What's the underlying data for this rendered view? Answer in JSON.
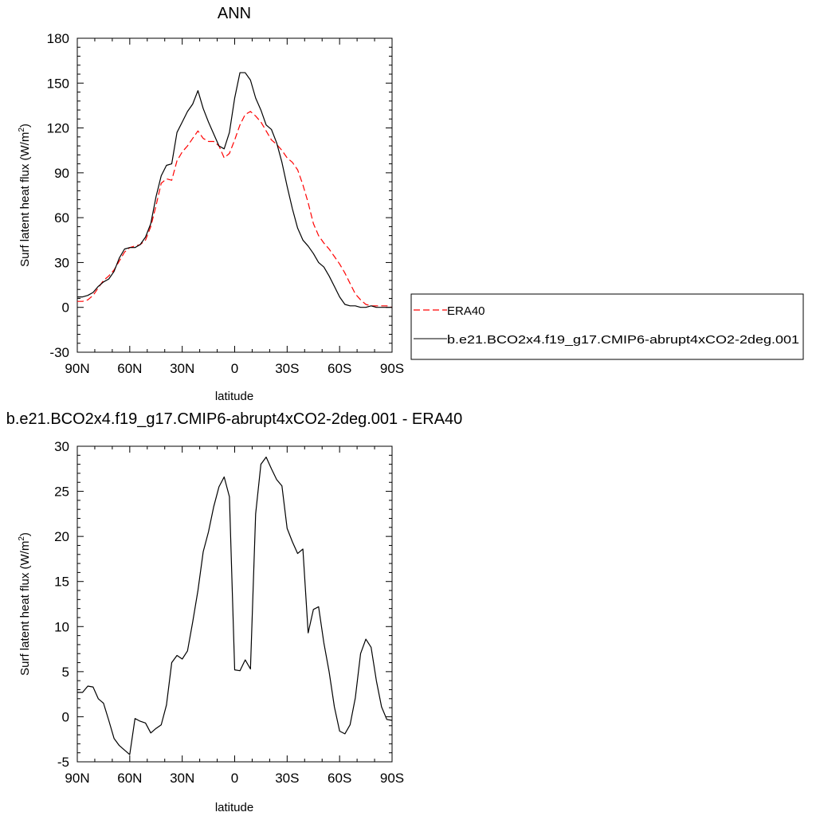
{
  "chart_data": [
    {
      "type": "line",
      "title": "ANN",
      "xlabel": "latitude",
      "ylabel": "Surf latent heat flux (W/m",
      "ylabel_sup": "2",
      "ylabel_end": ")",
      "xlim": [
        -90,
        90
      ],
      "ylim": [
        -30,
        180
      ],
      "xticks": [
        -90,
        -60,
        -30,
        0,
        30,
        60,
        90
      ],
      "xtick_labels": [
        "90N",
        "60N",
        "30N",
        "0",
        "30S",
        "60S",
        "90S"
      ],
      "yticks": [
        -30,
        0,
        30,
        60,
        90,
        120,
        150,
        180
      ],
      "ytick_labels": [
        "-30",
        "0",
        "30",
        "60",
        "90",
        "120",
        "150",
        "180"
      ],
      "grid": false,
      "legend_placement": "right",
      "series": [
        {
          "name": "ERA40",
          "color": "#ff0000",
          "dash": "dashed",
          "x": [
            -90,
            -87,
            -84,
            -81,
            -78,
            -75,
            -72,
            -69,
            -66,
            -63,
            -60,
            -57,
            -54,
            -51,
            -48,
            -45,
            -42,
            -39,
            -36,
            -33,
            -30,
            -27,
            -24,
            -21,
            -18,
            -15,
            -12,
            -9,
            -6,
            -3,
            0,
            3,
            6,
            9,
            12,
            15,
            18,
            21,
            24,
            27,
            30,
            33,
            36,
            39,
            42,
            45,
            48,
            51,
            54,
            57,
            60,
            63,
            66,
            69,
            72,
            75,
            78,
            81,
            84,
            87,
            90
          ],
          "y": [
            4,
            4,
            5,
            8,
            13,
            18,
            21,
            25,
            31,
            37,
            40,
            41,
            42,
            45,
            54,
            68,
            83,
            86,
            85,
            98,
            104,
            108,
            113,
            118,
            113,
            111,
            111,
            108,
            100,
            103,
            112,
            122,
            129,
            131,
            128,
            124,
            118,
            112,
            109,
            105,
            100,
            97,
            92,
            82,
            70,
            56,
            48,
            43,
            39,
            34,
            29,
            23,
            16,
            9,
            5,
            2,
            1,
            1,
            1,
            1,
            0
          ]
        },
        {
          "name": "b.e21.BCO2x4.f19_g17.CMIP6-abrupt4xCO2-2deg.001",
          "color": "#000000",
          "dash": "solid",
          "x": [
            -90,
            -87,
            -84,
            -81,
            -78,
            -75,
            -72,
            -69,
            -66,
            -63,
            -60,
            -57,
            -54,
            -51,
            -48,
            -45,
            -42,
            -39,
            -36,
            -33,
            -30,
            -27,
            -24,
            -21,
            -18,
            -15,
            -12,
            -9,
            -6,
            -3,
            0,
            3,
            6,
            9,
            12,
            15,
            18,
            21,
            24,
            27,
            30,
            33,
            36,
            39,
            42,
            45,
            48,
            51,
            54,
            57,
            60,
            63,
            66,
            69,
            72,
            75,
            78,
            81,
            84,
            87,
            90
          ],
          "y": [
            7,
            7,
            8,
            10,
            14,
            17,
            19,
            24,
            33,
            39,
            40,
            40,
            42,
            47,
            56,
            74,
            88,
            95,
            96,
            117,
            124,
            131,
            136,
            145,
            133,
            124,
            116,
            108,
            106,
            117,
            140,
            157,
            157,
            152,
            140,
            132,
            122,
            119,
            110,
            97,
            81,
            66,
            53,
            45,
            41,
            36,
            30,
            27,
            21,
            14,
            7,
            2,
            1,
            1,
            0,
            0,
            1,
            0,
            0,
            0,
            0
          ]
        }
      ]
    },
    {
      "type": "line",
      "title": "b.e21.BCO2x4.f19_g17.CMIP6-abrupt4xCO2-2deg.001 - ERA40",
      "xlabel": "latitude",
      "ylabel": "Surf latent heat flux (W/m",
      "ylabel_sup": "2",
      "ylabel_end": ")",
      "xlim": [
        -90,
        90
      ],
      "ylim": [
        -5,
        30
      ],
      "xticks": [
        -90,
        -60,
        -30,
        0,
        30,
        60,
        90
      ],
      "xtick_labels": [
        "90N",
        "60N",
        "30N",
        "0",
        "30S",
        "60S",
        "90S"
      ],
      "yticks": [
        -5,
        0,
        5,
        10,
        15,
        20,
        25,
        30
      ],
      "ytick_labels": [
        "-5",
        "0",
        "5",
        "10",
        "15",
        "20",
        "25",
        "30"
      ],
      "grid": false,
      "series": [
        {
          "color": "#000000",
          "dash": "solid",
          "x": [
            -90,
            -87,
            -84,
            -81,
            -78,
            -75,
            -72,
            -69,
            -66,
            -63,
            -60,
            -57,
            -54,
            -51,
            -48,
            -45,
            -42,
            -39,
            -36,
            -33,
            -30,
            -27,
            -24,
            -21,
            -18,
            -15,
            -12,
            -9,
            -6,
            -3,
            0,
            3,
            6,
            9,
            12,
            15,
            18,
            21,
            24,
            27,
            30,
            33,
            36,
            39,
            42,
            45,
            48,
            51,
            54,
            57,
            60,
            63,
            66,
            69,
            72,
            75,
            78,
            81,
            84,
            87,
            90
          ],
          "y": [
            2.7,
            2.7,
            3.4,
            3.3,
            2.0,
            1.5,
            -0.4,
            -2.4,
            -3.2,
            -3.7,
            -4.2,
            -0.2,
            -0.5,
            -0.7,
            -1.8,
            -1.3,
            -0.9,
            1.3,
            6.0,
            6.8,
            6.4,
            7.3,
            10.5,
            14.0,
            18.3,
            20.5,
            23.3,
            25.5,
            26.6,
            24.4,
            5.2,
            5.1,
            6.3,
            5.3,
            22.5,
            28.0,
            28.8,
            27.5,
            26.3,
            25.6,
            20.9,
            19.4,
            18.1,
            18.6,
            9.3,
            11.9,
            12.2,
            8.2,
            5.0,
            1.1,
            -1.6,
            -1.9,
            -0.9,
            2.1,
            7.0,
            8.6,
            7.7,
            4.0,
            1.1,
            -0.3,
            -0.4
          ]
        }
      ]
    }
  ]
}
